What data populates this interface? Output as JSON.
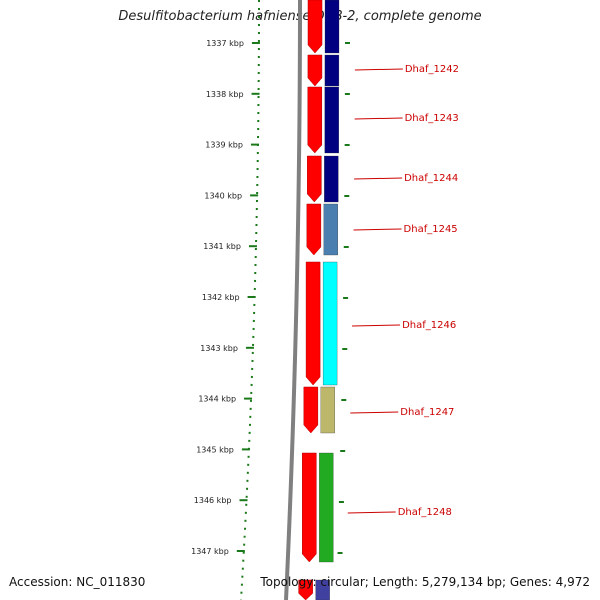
{
  "title": "Desulfitobacterium hafniense DCB-2, complete genome",
  "accession": "Accession: NC_011830",
  "topology": "Topology: circular; Length: 5,279,134 bp; Genes: 4,972",
  "colors": {
    "forward_gene": "#ff0000",
    "backbone": "#808080",
    "ruler": "#1a7a1a",
    "label": "#cc0000",
    "navy": "#000080",
    "steel": "#4a7fb0",
    "cyan": "#00ffff",
    "khaki": "#bdb76b",
    "green": "#22aa22"
  },
  "ticks": [
    "1337 kbp",
    "1338 kbp",
    "1339 kbp",
    "1340 kbp",
    "1341 kbp",
    "1342 kbp",
    "1343 kbp",
    "1344 kbp",
    "1345 kbp",
    "1346 kbp",
    "1347 kbp"
  ],
  "genes": [
    {
      "name": "Dhaf_1242",
      "color": "#000080"
    },
    {
      "name": "Dhaf_1243",
      "color": "#000080"
    },
    {
      "name": "Dhaf_1244",
      "color": "#000080"
    },
    {
      "name": "Dhaf_1245",
      "color": "#4a7fb0"
    },
    {
      "name": "Dhaf_1246",
      "color": "#00ffff"
    },
    {
      "name": "Dhaf_1247",
      "color": "#bdb76b"
    },
    {
      "name": "Dhaf_1248",
      "color": "#22aa22"
    }
  ]
}
